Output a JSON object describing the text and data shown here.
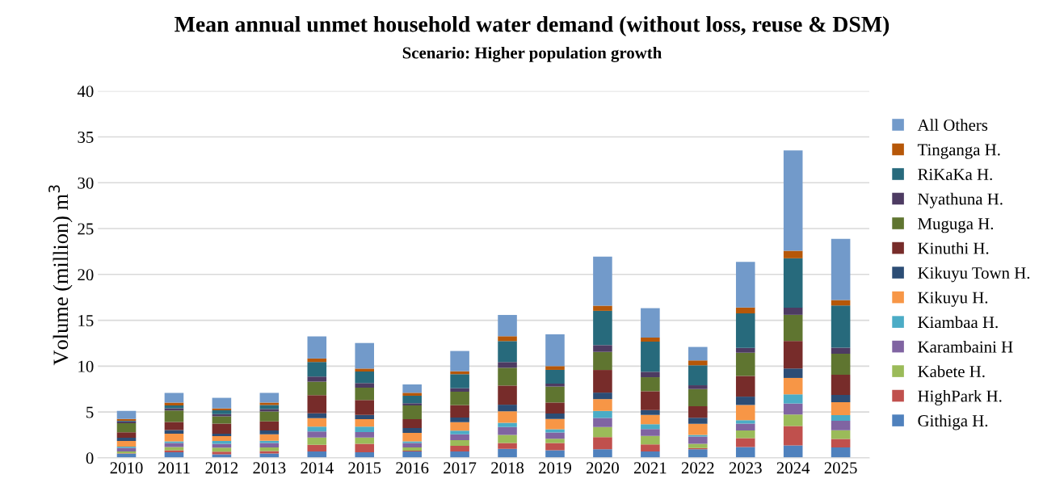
{
  "chart_data": {
    "type": "bar",
    "stacked": true,
    "title": "Mean annual unmet household water demand (without loss, reuse & DSM)",
    "subtitle": "Scenario: Higher population growth",
    "ylabel": "Volume (million) m$^{3}$",
    "categories": [
      "2010",
      "2011",
      "2012",
      "2013",
      "2014",
      "2015",
      "2016",
      "2017",
      "2018",
      "2019",
      "2020",
      "2021",
      "2022",
      "2023",
      "2024",
      "2025"
    ],
    "ylim": [
      0,
      40
    ],
    "yticks": [
      0,
      5,
      10,
      15,
      20,
      25,
      30,
      35,
      40
    ],
    "grid": "y",
    "legend": "right",
    "series": [
      {
        "name": "Githiga H.",
        "color": "#4f81bd",
        "values": [
          0.44,
          0.59,
          0.38,
          0.47,
          0.68,
          0.59,
          0.68,
          0.68,
          0.97,
          0.82,
          0.94,
          0.68,
          0.94,
          1.18,
          1.35,
          1.12
        ]
      },
      {
        "name": "HighPark H.",
        "color": "#c0504d",
        "values": [
          0.05,
          0.24,
          0.29,
          0.26,
          0.74,
          0.94,
          0.09,
          0.62,
          0.65,
          0.79,
          1.32,
          0.79,
          0.12,
          0.97,
          2.12,
          0.94
        ]
      },
      {
        "name": "Kabete H.",
        "color": "#9bbb59",
        "values": [
          0.2,
          0.35,
          0.44,
          0.41,
          0.79,
          0.68,
          0.35,
          0.62,
          0.88,
          0.47,
          1.09,
          0.91,
          0.47,
          0.82,
          1.24,
          0.94
        ]
      },
      {
        "name": "Karambaini H",
        "color": "#8064a2",
        "values": [
          0.4,
          0.44,
          0.41,
          0.47,
          0.65,
          0.59,
          0.5,
          0.65,
          0.85,
          0.68,
          1.0,
          0.76,
          0.79,
          0.76,
          1.21,
          1.03
        ]
      },
      {
        "name": "Kiambaa H.",
        "color": "#4bacc6",
        "values": [
          0.12,
          0.18,
          0.32,
          0.24,
          0.53,
          0.59,
          0.18,
          0.38,
          0.47,
          0.35,
          0.76,
          0.53,
          0.18,
          0.38,
          1.0,
          0.62
        ]
      },
      {
        "name": "Kikuyu H.",
        "color": "#f79646",
        "values": [
          0.62,
          0.82,
          0.53,
          0.71,
          0.94,
          0.82,
          0.91,
          0.94,
          1.26,
          1.12,
          1.29,
          1.0,
          1.21,
          1.65,
          1.79,
          1.41
        ]
      },
      {
        "name": "Kikuyu Town H.",
        "color": "#2c4d75",
        "values": [
          0.35,
          0.41,
          0.26,
          0.41,
          0.53,
          0.47,
          0.53,
          0.5,
          0.71,
          0.59,
          0.71,
          0.53,
          0.65,
          0.91,
          1.03,
          0.79
        ]
      },
      {
        "name": "Kinuthi H.",
        "color": "#772c2a",
        "values": [
          0.6,
          0.88,
          1.09,
          1.0,
          1.97,
          1.62,
          0.97,
          1.35,
          2.09,
          1.21,
          2.47,
          2.06,
          1.26,
          2.26,
          3.0,
          2.21
        ]
      },
      {
        "name": "Muguga H.",
        "color": "#5f7530",
        "values": [
          1.0,
          1.26,
          0.79,
          1.09,
          1.47,
          1.35,
          1.5,
          1.47,
          1.94,
          1.74,
          1.97,
          1.53,
          1.88,
          2.53,
          2.85,
          2.29
        ]
      },
      {
        "name": "Nyathuna H.",
        "color": "#4d3b62",
        "values": [
          0.2,
          0.24,
          0.26,
          0.26,
          0.56,
          0.5,
          0.24,
          0.38,
          0.62,
          0.32,
          0.74,
          0.59,
          0.41,
          0.53,
          0.79,
          0.65
        ]
      },
      {
        "name": "RiKaKa H.",
        "color": "#276a7c",
        "values": [
          0.06,
          0.29,
          0.41,
          0.44,
          1.59,
          1.26,
          0.82,
          1.53,
          2.29,
          1.5,
          3.74,
          3.29,
          2.18,
          3.76,
          5.38,
          4.62
        ]
      },
      {
        "name": "Tinganga H.",
        "color": "#b65708",
        "values": [
          0.2,
          0.32,
          0.21,
          0.26,
          0.38,
          0.32,
          0.32,
          0.32,
          0.53,
          0.41,
          0.56,
          0.44,
          0.53,
          0.65,
          0.82,
          0.59
        ]
      },
      {
        "name": "All Others",
        "color": "#729aca",
        "values": [
          0.88,
          1.06,
          1.15,
          1.06,
          2.41,
          2.79,
          0.91,
          2.21,
          2.32,
          3.47,
          5.35,
          3.21,
          1.47,
          4.97,
          10.94,
          6.68
        ]
      }
    ]
  }
}
